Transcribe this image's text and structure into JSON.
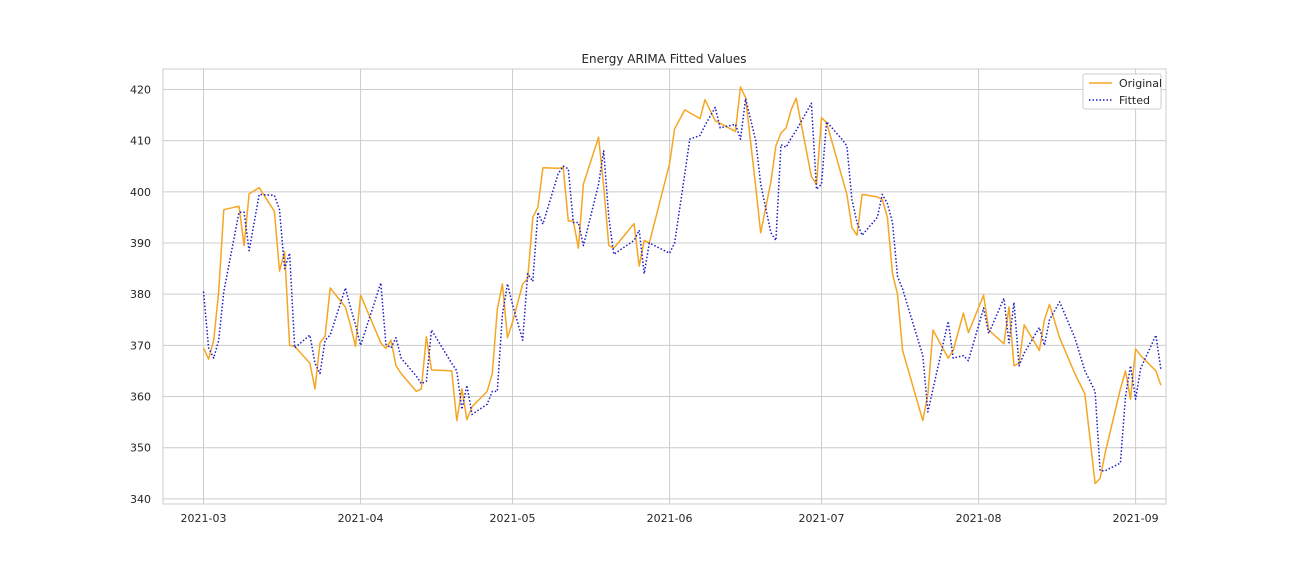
{
  "chart_data": {
    "type": "line",
    "title": "Energy ARIMA Fitted Values",
    "xlabel": "",
    "ylabel": "",
    "ylim": [
      339,
      424
    ],
    "xlim": [
      "2021-02-21",
      "2021-09-07"
    ],
    "yticks": [
      340,
      350,
      360,
      370,
      380,
      390,
      400,
      410,
      420
    ],
    "xticks": [
      "2021-03",
      "2021-04",
      "2021-05",
      "2021-06",
      "2021-07",
      "2021-08",
      "2021-09"
    ],
    "grid": true,
    "legend_position": "top-right",
    "series": [
      {
        "name": "Original",
        "color": "#f5a623",
        "style": "solid",
        "points": [
          [
            "2021-03-01",
            369.5
          ],
          [
            "2021-03-02",
            367.3
          ],
          [
            "2021-03-03",
            371.0
          ],
          [
            "2021-03-04",
            380.5
          ],
          [
            "2021-03-05",
            396.5
          ],
          [
            "2021-03-08",
            397.2
          ],
          [
            "2021-03-09",
            389.5
          ],
          [
            "2021-03-10",
            399.6
          ],
          [
            "2021-03-12",
            400.8
          ],
          [
            "2021-03-15",
            396.2
          ],
          [
            "2021-03-16",
            384.5
          ],
          [
            "2021-03-17",
            388.3
          ],
          [
            "2021-03-18",
            370.0
          ],
          [
            "2021-03-19",
            369.8
          ],
          [
            "2021-03-22",
            366.5
          ],
          [
            "2021-03-23",
            361.5
          ],
          [
            "2021-03-24",
            370.5
          ],
          [
            "2021-03-25",
            371.8
          ],
          [
            "2021-03-26",
            381.2
          ],
          [
            "2021-03-29",
            377.5
          ],
          [
            "2021-03-30",
            374.0
          ],
          [
            "2021-03-31",
            369.8
          ],
          [
            "2021-04-01",
            379.8
          ],
          [
            "2021-04-05",
            370.5
          ],
          [
            "2021-04-06",
            369.4
          ],
          [
            "2021-04-07",
            371.0
          ],
          [
            "2021-04-08",
            366.0
          ],
          [
            "2021-04-09",
            364.5
          ],
          [
            "2021-04-12",
            361.0
          ],
          [
            "2021-04-13",
            361.5
          ],
          [
            "2021-04-14",
            371.7
          ],
          [
            "2021-04-15",
            365.2
          ],
          [
            "2021-04-19",
            365.0
          ],
          [
            "2021-04-20",
            355.3
          ],
          [
            "2021-04-21",
            361.5
          ],
          [
            "2021-04-22",
            355.5
          ],
          [
            "2021-04-23",
            358.0
          ],
          [
            "2021-04-26",
            361.0
          ],
          [
            "2021-04-27",
            364.5
          ],
          [
            "2021-04-28",
            377.0
          ],
          [
            "2021-04-29",
            382.0
          ],
          [
            "2021-04-30",
            371.5
          ],
          [
            "2021-05-01",
            374.5
          ],
          [
            "2021-05-03",
            382.0
          ],
          [
            "2021-05-04",
            383.0
          ],
          [
            "2021-05-05",
            395.0
          ],
          [
            "2021-05-06",
            397.0
          ],
          [
            "2021-05-07",
            404.7
          ],
          [
            "2021-05-10",
            404.6
          ],
          [
            "2021-05-11",
            404.8
          ],
          [
            "2021-05-12",
            394.3
          ],
          [
            "2021-05-13",
            394.3
          ],
          [
            "2021-05-14",
            389.0
          ],
          [
            "2021-05-15",
            401.5
          ],
          [
            "2021-05-18",
            410.7
          ],
          [
            "2021-05-19",
            401.0
          ],
          [
            "2021-05-20",
            389.5
          ],
          [
            "2021-05-21",
            389.0
          ],
          [
            "2021-05-25",
            393.8
          ],
          [
            "2021-05-26",
            385.5
          ],
          [
            "2021-05-27",
            390.5
          ],
          [
            "2021-05-28",
            390.0
          ],
          [
            "2021-06-01",
            405.5
          ],
          [
            "2021-06-02",
            412.3
          ],
          [
            "2021-06-04",
            416.0
          ],
          [
            "2021-06-07",
            414.3
          ],
          [
            "2021-06-08",
            418.0
          ],
          [
            "2021-06-10",
            413.9
          ],
          [
            "2021-06-14",
            411.8
          ],
          [
            "2021-06-15",
            420.5
          ],
          [
            "2021-06-16",
            418.4
          ],
          [
            "2021-06-18",
            401.0
          ],
          [
            "2021-06-19",
            392.0
          ],
          [
            "2021-06-21",
            402.0
          ],
          [
            "2021-06-22",
            409.0
          ],
          [
            "2021-06-23",
            411.5
          ],
          [
            "2021-06-24",
            412.5
          ],
          [
            "2021-06-25",
            416.0
          ],
          [
            "2021-06-26",
            418.3
          ],
          [
            "2021-06-29",
            403.0
          ],
          [
            "2021-06-30",
            401.5
          ],
          [
            "2021-07-01",
            414.5
          ],
          [
            "2021-07-02",
            413.5
          ],
          [
            "2021-07-05",
            403.0
          ],
          [
            "2021-07-06",
            399.5
          ],
          [
            "2021-07-07",
            393.0
          ],
          [
            "2021-07-08",
            391.5
          ],
          [
            "2021-07-09",
            399.5
          ],
          [
            "2021-07-12",
            399.0
          ],
          [
            "2021-07-13",
            398.5
          ],
          [
            "2021-07-14",
            395.0
          ],
          [
            "2021-07-15",
            384.0
          ],
          [
            "2021-07-16",
            380.0
          ],
          [
            "2021-07-17",
            369.0
          ],
          [
            "2021-07-21",
            355.3
          ],
          [
            "2021-07-22",
            360.5
          ],
          [
            "2021-07-23",
            373.0
          ],
          [
            "2021-07-26",
            367.5
          ],
          [
            "2021-07-27",
            369.0
          ],
          [
            "2021-07-29",
            376.3
          ],
          [
            "2021-07-30",
            372.5
          ],
          [
            "2021-08-02",
            379.8
          ],
          [
            "2021-08-03",
            373.0
          ],
          [
            "2021-08-06",
            370.3
          ],
          [
            "2021-08-07",
            377.5
          ],
          [
            "2021-08-08",
            366.0
          ],
          [
            "2021-08-09",
            366.5
          ],
          [
            "2021-08-10",
            374.0
          ],
          [
            "2021-08-13",
            369.0
          ],
          [
            "2021-08-14",
            375.0
          ],
          [
            "2021-08-15",
            378.0
          ],
          [
            "2021-08-17",
            371.5
          ],
          [
            "2021-08-20",
            364.5
          ],
          [
            "2021-08-22",
            360.5
          ],
          [
            "2021-08-24",
            343.0
          ],
          [
            "2021-08-25",
            344.0
          ],
          [
            "2021-08-26",
            349.0
          ],
          [
            "2021-08-29",
            361.5
          ],
          [
            "2021-08-30",
            365.0
          ],
          [
            "2021-08-31",
            359.5
          ],
          [
            "2021-09-01",
            369.3
          ],
          [
            "2021-09-02",
            368.0
          ],
          [
            "2021-09-05",
            365.0
          ],
          [
            "2021-09-06",
            362.2
          ]
        ]
      },
      {
        "name": "Fitted",
        "color": "#1a1ac8",
        "style": "dotted",
        "points": [
          [
            "2021-03-01",
            380.5
          ],
          [
            "2021-03-02",
            369.5
          ],
          [
            "2021-03-03",
            367.5
          ],
          [
            "2021-03-04",
            371.0
          ],
          [
            "2021-03-05",
            380.5
          ],
          [
            "2021-03-08",
            396.0
          ],
          [
            "2021-03-09",
            396.0
          ],
          [
            "2021-03-10",
            388.5
          ],
          [
            "2021-03-12",
            399.5
          ],
          [
            "2021-03-15",
            399.3
          ],
          [
            "2021-03-16",
            396.5
          ],
          [
            "2021-03-17",
            385.0
          ],
          [
            "2021-03-18",
            388.0
          ],
          [
            "2021-03-19",
            369.5
          ],
          [
            "2021-03-22",
            372.0
          ],
          [
            "2021-03-23",
            366.5
          ],
          [
            "2021-03-24",
            364.5
          ],
          [
            "2021-03-25",
            371.0
          ],
          [
            "2021-03-26",
            372.0
          ],
          [
            "2021-03-29",
            381.2
          ],
          [
            "2021-03-30",
            377.5
          ],
          [
            "2021-03-31",
            374.0
          ],
          [
            "2021-04-01",
            370.0
          ],
          [
            "2021-04-05",
            382.2
          ],
          [
            "2021-04-06",
            370.2
          ],
          [
            "2021-04-07",
            369.5
          ],
          [
            "2021-04-08",
            371.5
          ],
          [
            "2021-04-09",
            367.5
          ],
          [
            "2021-04-12",
            364.0
          ],
          [
            "2021-04-13",
            362.5
          ],
          [
            "2021-04-14",
            363.0
          ],
          [
            "2021-04-15",
            373.0
          ],
          [
            "2021-04-19",
            366.5
          ],
          [
            "2021-04-20",
            365.0
          ],
          [
            "2021-04-21",
            357.5
          ],
          [
            "2021-04-22",
            362.2
          ],
          [
            "2021-04-23",
            356.5
          ],
          [
            "2021-04-26",
            358.5
          ],
          [
            "2021-04-27",
            361.0
          ],
          [
            "2021-04-28",
            361.0
          ],
          [
            "2021-04-29",
            376.0
          ],
          [
            "2021-04-30",
            382.0
          ],
          [
            "2021-05-01",
            378.0
          ],
          [
            "2021-05-03",
            371.0
          ],
          [
            "2021-05-04",
            384.0
          ],
          [
            "2021-05-05",
            382.5
          ],
          [
            "2021-05-06",
            396.0
          ],
          [
            "2021-05-07",
            393.7
          ],
          [
            "2021-05-10",
            403.5
          ],
          [
            "2021-05-11",
            405.0
          ],
          [
            "2021-05-12",
            404.5
          ],
          [
            "2021-05-13",
            394.0
          ],
          [
            "2021-05-14",
            394.0
          ],
          [
            "2021-05-15",
            389.5
          ],
          [
            "2021-05-18",
            401.5
          ],
          [
            "2021-05-19",
            408.0
          ],
          [
            "2021-05-20",
            395.0
          ],
          [
            "2021-05-21",
            387.8
          ],
          [
            "2021-05-25",
            390.5
          ],
          [
            "2021-05-26",
            392.5
          ],
          [
            "2021-05-27",
            384.0
          ],
          [
            "2021-05-28",
            390.0
          ],
          [
            "2021-06-01",
            388.0
          ],
          [
            "2021-06-02",
            390.0
          ],
          [
            "2021-06-04",
            403.5
          ],
          [
            "2021-06-05",
            410.3
          ],
          [
            "2021-06-07",
            411.0
          ],
          [
            "2021-06-08",
            413.0
          ],
          [
            "2021-06-10",
            416.5
          ],
          [
            "2021-06-11",
            412.5
          ],
          [
            "2021-06-14",
            413.2
          ],
          [
            "2021-06-15",
            410.3
          ],
          [
            "2021-06-16",
            418.2
          ],
          [
            "2021-06-18",
            410.0
          ],
          [
            "2021-06-19",
            401.5
          ],
          [
            "2021-06-21",
            392.0
          ],
          [
            "2021-06-22",
            390.5
          ],
          [
            "2021-06-23",
            409.2
          ],
          [
            "2021-06-24",
            408.7
          ],
          [
            "2021-06-25",
            410.5
          ],
          [
            "2021-06-26",
            412.0
          ],
          [
            "2021-06-29",
            417.3
          ],
          [
            "2021-06-30",
            400.5
          ],
          [
            "2021-07-01",
            401.5
          ],
          [
            "2021-07-02",
            413.7
          ],
          [
            "2021-07-05",
            410.3
          ],
          [
            "2021-07-06",
            409.0
          ],
          [
            "2021-07-07",
            398.5
          ],
          [
            "2021-07-08",
            394.0
          ],
          [
            "2021-07-09",
            391.5
          ],
          [
            "2021-07-12",
            395.0
          ],
          [
            "2021-07-13",
            399.5
          ],
          [
            "2021-07-14",
            397.7
          ],
          [
            "2021-07-15",
            394.0
          ],
          [
            "2021-07-16",
            383.5
          ],
          [
            "2021-07-17",
            381.0
          ],
          [
            "2021-07-21",
            368.0
          ],
          [
            "2021-07-22",
            357.0
          ],
          [
            "2021-07-23",
            361.5
          ],
          [
            "2021-07-26",
            374.7
          ],
          [
            "2021-07-27",
            367.5
          ],
          [
            "2021-07-29",
            368.0
          ],
          [
            "2021-07-30",
            367.0
          ],
          [
            "2021-08-02",
            377.3
          ],
          [
            "2021-08-03",
            372.3
          ],
          [
            "2021-08-06",
            379.2
          ],
          [
            "2021-08-07",
            370.5
          ],
          [
            "2021-08-08",
            378.4
          ],
          [
            "2021-08-09",
            366.0
          ],
          [
            "2021-08-10",
            368.5
          ],
          [
            "2021-08-13",
            373.5
          ],
          [
            "2021-08-14",
            370.0
          ],
          [
            "2021-08-15",
            375.0
          ],
          [
            "2021-08-17",
            378.5
          ],
          [
            "2021-08-20",
            371.5
          ],
          [
            "2021-08-22",
            365.0
          ],
          [
            "2021-08-24",
            361.0
          ],
          [
            "2021-08-25",
            345.5
          ],
          [
            "2021-08-26",
            345.5
          ],
          [
            "2021-08-29",
            347.0
          ],
          [
            "2021-08-30",
            360.0
          ],
          [
            "2021-08-31",
            366.0
          ],
          [
            "2021-09-01",
            359.5
          ],
          [
            "2021-09-02",
            365.5
          ],
          [
            "2021-09-05",
            372.0
          ],
          [
            "2021-09-06",
            365.3
          ]
        ]
      }
    ]
  }
}
